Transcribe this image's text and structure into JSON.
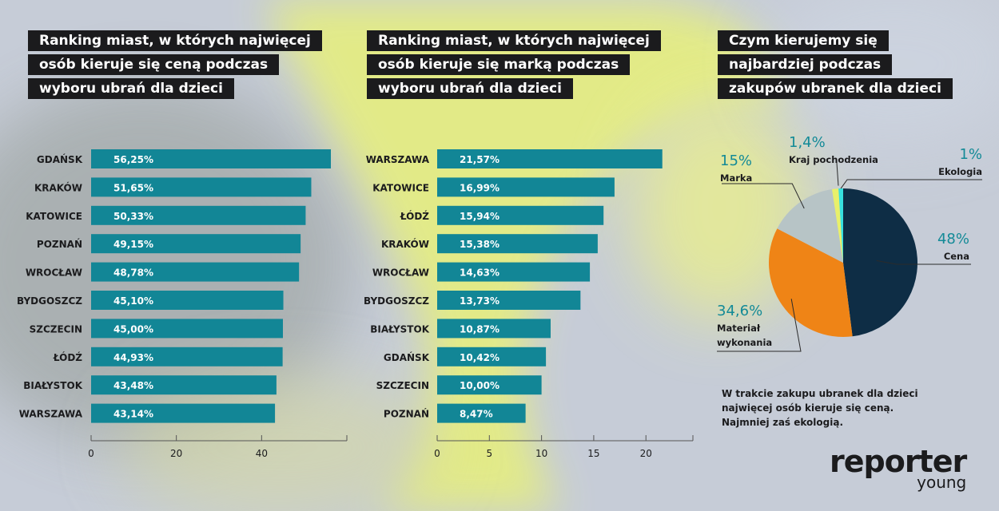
{
  "colors": {
    "bar": "#128696",
    "label_text": "#1b1b1d",
    "title_bg": "#1b1b1d",
    "pie": [
      "#0e2d45",
      "#ef8416",
      "#b7c4c6",
      "#e8f06a",
      "#37e0de"
    ],
    "pct_accent": "#138a97"
  },
  "chart_data": [
    {
      "type": "bar",
      "orientation": "horizontal",
      "title_lines": [
        "Ranking miast, w których najwięcej",
        "osób kieruje się ceną podczas",
        "wyboru ubrań dla dzieci"
      ],
      "categories": [
        "GDAŃSK",
        "KRAKÓW",
        "KATOWICE",
        "POZNAŃ",
        "WROCŁAW",
        "BYDGOSZCZ",
        "SZCZECIN",
        "ŁÓDŹ",
        "BIAŁYSTOK",
        "WARSZAWA"
      ],
      "values": [
        56.25,
        51.65,
        50.33,
        49.15,
        48.78,
        45.1,
        45.0,
        44.93,
        43.48,
        43.14
      ],
      "value_labels": [
        "56,25%",
        "51,65%",
        "50,33%",
        "49,15%",
        "48,78%",
        "45,10%",
        "45,00%",
        "44,93%",
        "43,48%",
        "43,14%"
      ],
      "xlim": [
        0,
        60
      ],
      "xticks": [
        0,
        20,
        40
      ],
      "xtick_labels": [
        "0",
        "20",
        "40"
      ]
    },
    {
      "type": "bar",
      "orientation": "horizontal",
      "title_lines": [
        "Ranking miast, w których najwięcej",
        "osób kieruje się marką podczas",
        "wyboru ubrań dla dzieci"
      ],
      "categories": [
        "WARSZAWA",
        "KATOWICE",
        "ŁÓDŹ",
        "KRAKÓW",
        "WROCŁAW",
        "BYDGOSZCZ",
        "BIAŁYSTOK",
        "GDAŃSK",
        "SZCZECIN",
        "POZNAŃ"
      ],
      "values": [
        21.57,
        16.99,
        15.94,
        15.38,
        14.63,
        13.73,
        10.87,
        10.42,
        10.0,
        8.47
      ],
      "value_labels": [
        "21,57%",
        "16,99%",
        "15,94%",
        "15,38%",
        "14,63%",
        "13,73%",
        "10,87%",
        "10,42%",
        "10,00%",
        "8,47%"
      ],
      "xlim": [
        0,
        24.5
      ],
      "xticks": [
        0,
        5,
        10,
        15,
        20
      ],
      "xtick_labels": [
        "0",
        "5",
        "10",
        "15",
        "20"
      ]
    },
    {
      "type": "pie",
      "title_lines": [
        "Czym kierujemy się",
        "najbardziej podczas",
        "zakupów ubranek dla dzieci"
      ],
      "slices": [
        {
          "name_lines": [
            "Cena"
          ],
          "value": 48,
          "label": "48%"
        },
        {
          "name_lines": [
            "Materiał",
            "wykonania"
          ],
          "value": 34.6,
          "label": "34,6%"
        },
        {
          "name_lines": [
            "Marka"
          ],
          "value": 15,
          "label": "15%"
        },
        {
          "name_lines": [
            "Kraj pochodzenia"
          ],
          "value": 1.4,
          "label": "1,4%"
        },
        {
          "name_lines": [
            "Ekologia"
          ],
          "value": 1,
          "label": "1%"
        }
      ]
    }
  ],
  "footnote_lines": [
    "W trakcie zakupu ubranek dla dzieci",
    "najwięcej osób kieruje się ceną.",
    "Najmniej zaś ekologią."
  ],
  "logo": {
    "main": "reporter",
    "sub": "young"
  }
}
